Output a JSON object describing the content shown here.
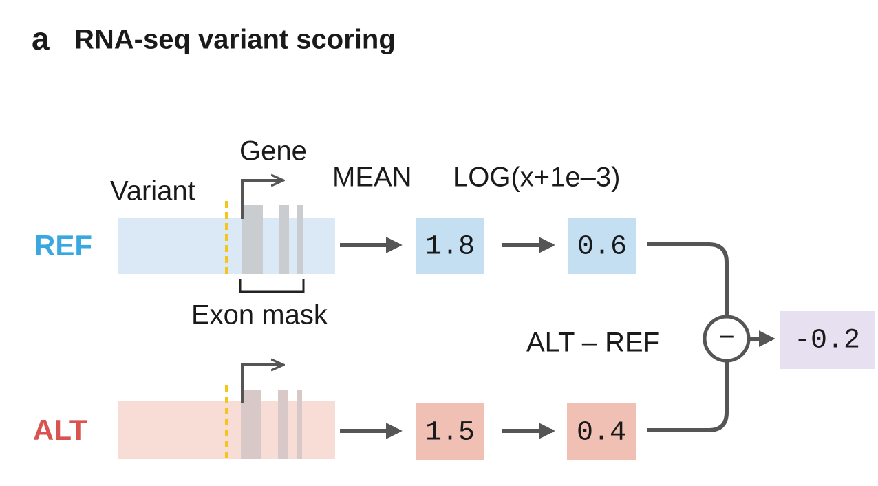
{
  "header": {
    "panel": "a",
    "title": "RNA-seq variant scoring"
  },
  "labels": {
    "gene": "Gene",
    "variant": "Variant",
    "exon_mask": "Exon mask",
    "mean": "MEAN",
    "log": "LOG(x+1e–3)",
    "diff": "ALT – REF"
  },
  "rows": [
    {
      "label": "REF",
      "mean": "1.8",
      "log": "0.6"
    },
    {
      "label": "ALT",
      "mean": "1.5",
      "log": "0.4"
    }
  ],
  "operator": "−",
  "result": "-0.2"
}
